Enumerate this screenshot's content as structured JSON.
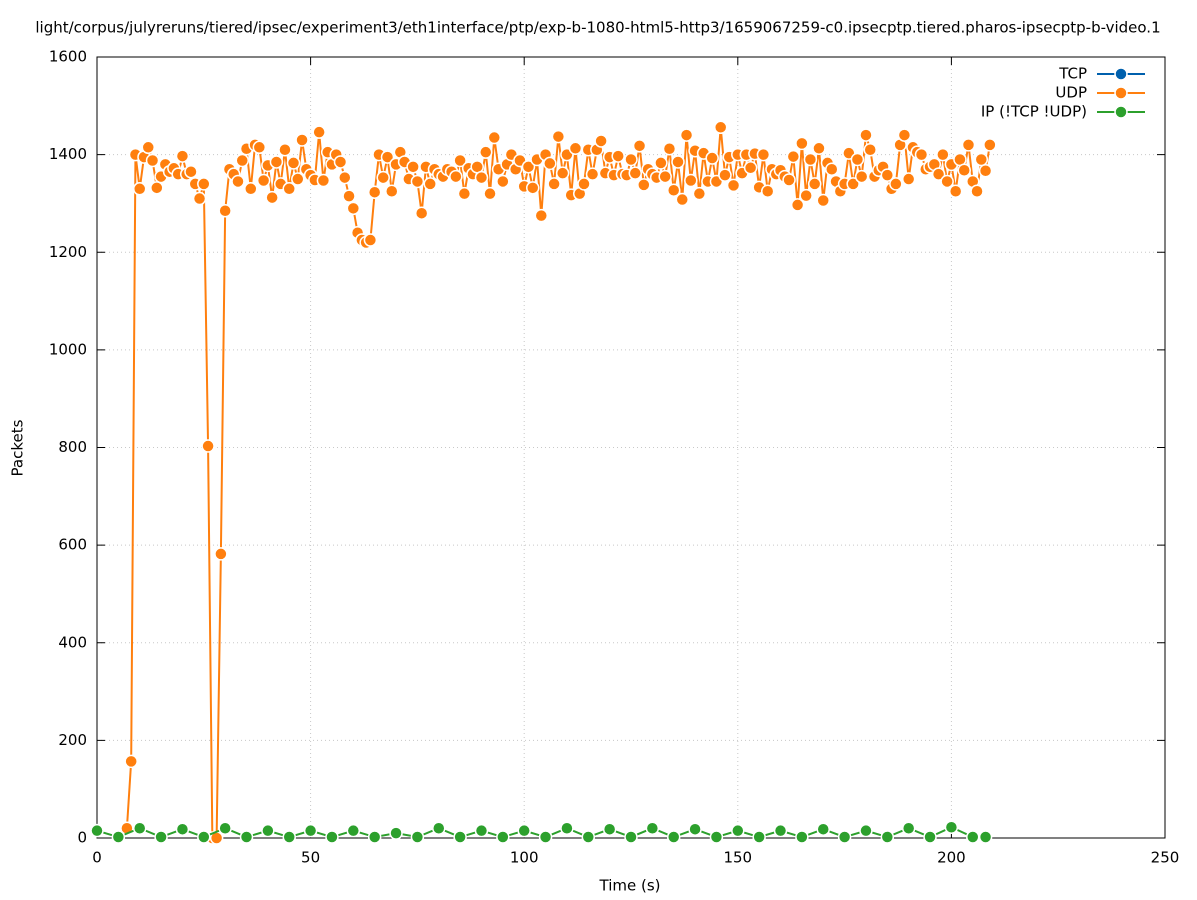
{
  "chart_data": {
    "type": "line",
    "title": "light/corpus/julyreruns/tiered/ipsec/experiment3/eth1interface/ptp/exp-b-1080-html5-http3/1659067259-c0.ipsecptp.tiered.pharos-ipsecptp-b-video.1",
    "x_label": "Time (s)",
    "y_label": "Packets",
    "xlim": [
      0,
      250
    ],
    "xticks": [
      0,
      50,
      100,
      150,
      200,
      250
    ],
    "ylim": [
      0,
      1600
    ],
    "yticks": [
      0,
      200,
      400,
      600,
      800,
      1000,
      1200,
      1400,
      1600
    ],
    "grid": true,
    "legend": "top-right",
    "series": [
      {
        "name": "TCP",
        "color": "#0060ad",
        "x": [],
        "values": []
      },
      {
        "name": "UDP",
        "color": "#ff7f0e",
        "x": [
          7,
          8,
          9,
          10,
          11,
          12,
          13,
          14,
          15,
          16,
          17,
          18,
          19,
          20,
          21,
          22,
          23,
          24,
          25,
          26,
          27,
          28,
          29,
          30,
          31,
          32,
          33,
          34,
          35,
          36,
          37,
          38,
          39,
          40,
          41,
          42,
          43,
          44,
          45,
          46,
          47,
          48,
          49,
          50,
          51,
          52,
          53,
          54,
          55,
          56,
          57,
          58,
          59,
          60,
          61,
          62,
          63,
          64,
          65,
          66,
          67,
          68,
          69,
          70,
          71,
          72,
          73,
          74,
          75,
          76,
          77,
          78,
          79,
          80,
          81,
          82,
          83,
          84,
          85,
          86,
          87,
          88,
          89,
          90,
          91,
          92,
          93,
          94,
          95,
          96,
          97,
          98,
          99,
          100,
          101,
          102,
          103,
          104,
          105,
          106,
          107,
          108,
          109,
          110,
          111,
          112,
          113,
          114,
          115,
          116,
          117,
          118,
          119,
          120,
          121,
          122,
          123,
          124,
          125,
          126,
          127,
          128,
          129,
          130,
          131,
          132,
          133,
          134,
          135,
          136,
          137,
          138,
          139,
          140,
          141,
          142,
          143,
          144,
          145,
          146,
          147,
          148,
          149,
          150,
          151,
          152,
          153,
          154,
          155,
          156,
          157,
          158,
          159,
          160,
          161,
          162,
          163,
          164,
          165,
          166,
          167,
          168,
          169,
          170,
          171,
          172,
          173,
          174,
          175,
          176,
          177,
          178,
          179,
          180,
          181,
          182,
          183,
          184,
          185,
          186,
          187,
          188,
          189,
          190,
          191,
          192,
          193,
          194,
          195,
          196,
          197,
          198,
          199,
          200,
          201,
          202,
          203,
          204,
          205,
          206,
          207,
          208,
          209
        ],
        "values": [
          20,
          157,
          1400,
          1330,
          1395,
          1415,
          1388,
          1332,
          1355,
          1380,
          1365,
          1372,
          1360,
          1397,
          1360,
          1365,
          1340,
          1310,
          1340,
          803,
          0,
          0,
          582,
          1285,
          1370,
          1360,
          1345,
          1388,
          1412,
          1330,
          1420,
          1415,
          1347,
          1378,
          1312,
          1385,
          1340,
          1410,
          1330,
          1383,
          1350,
          1430,
          1370,
          1358,
          1348,
          1446,
          1347,
          1405,
          1380,
          1400,
          1385,
          1353,
          1315,
          1290,
          1240,
          1225,
          1220,
          1225,
          1323,
          1400,
          1353,
          1395,
          1325,
          1380,
          1405,
          1385,
          1350,
          1375,
          1345,
          1280,
          1375,
          1340,
          1370,
          1360,
          1355,
          1370,
          1365,
          1355,
          1388,
          1320,
          1372,
          1360,
          1375,
          1353,
          1405,
          1320,
          1435,
          1370,
          1345,
          1380,
          1400,
          1370,
          1388,
          1335,
          1375,
          1332,
          1390,
          1275,
          1400,
          1382,
          1340,
          1437,
          1362,
          1400,
          1317,
          1413,
          1320,
          1340,
          1410,
          1360,
          1410,
          1428,
          1362,
          1395,
          1358,
          1397,
          1360,
          1358,
          1390,
          1362,
          1418,
          1338,
          1370,
          1360,
          1353,
          1383,
          1355,
          1412,
          1327,
          1385,
          1308,
          1440,
          1347,
          1408,
          1320,
          1403,
          1345,
          1393,
          1345,
          1456,
          1358,
          1395,
          1337,
          1400,
          1362,
          1400,
          1373,
          1402,
          1333,
          1400,
          1325,
          1370,
          1360,
          1368,
          1355,
          1348,
          1396,
          1297,
          1423,
          1316,
          1390,
          1340,
          1413,
          1306,
          1383,
          1370,
          1345,
          1325,
          1340,
          1403,
          1340,
          1390,
          1355,
          1440,
          1410,
          1355,
          1368,
          1375,
          1358,
          1330,
          1340,
          1420,
          1440,
          1350,
          1415,
          1405,
          1400,
          1370,
          1375,
          1380,
          1360,
          1400,
          1345,
          1380,
          1325,
          1390,
          1368,
          1420,
          1345,
          1325,
          1390,
          1367,
          1420
        ]
      },
      {
        "name": "IP (!TCP  !UDP)",
        "color": "#2ca02c",
        "x": [
          0,
          5,
          10,
          15,
          20,
          25,
          30,
          35,
          40,
          45,
          50,
          55,
          60,
          65,
          70,
          75,
          80,
          85,
          90,
          95,
          100,
          105,
          110,
          115,
          120,
          125,
          130,
          135,
          140,
          145,
          150,
          155,
          160,
          165,
          170,
          175,
          180,
          185,
          190,
          195,
          200,
          205,
          208
        ],
        "values": [
          15,
          2,
          20,
          2,
          18,
          2,
          20,
          2,
          15,
          2,
          15,
          2,
          15,
          2,
          10,
          2,
          20,
          2,
          15,
          2,
          15,
          2,
          20,
          2,
          18,
          2,
          20,
          2,
          18,
          2,
          15,
          2,
          15,
          2,
          18,
          2,
          15,
          2,
          20,
          2,
          22,
          2,
          2
        ]
      }
    ]
  }
}
